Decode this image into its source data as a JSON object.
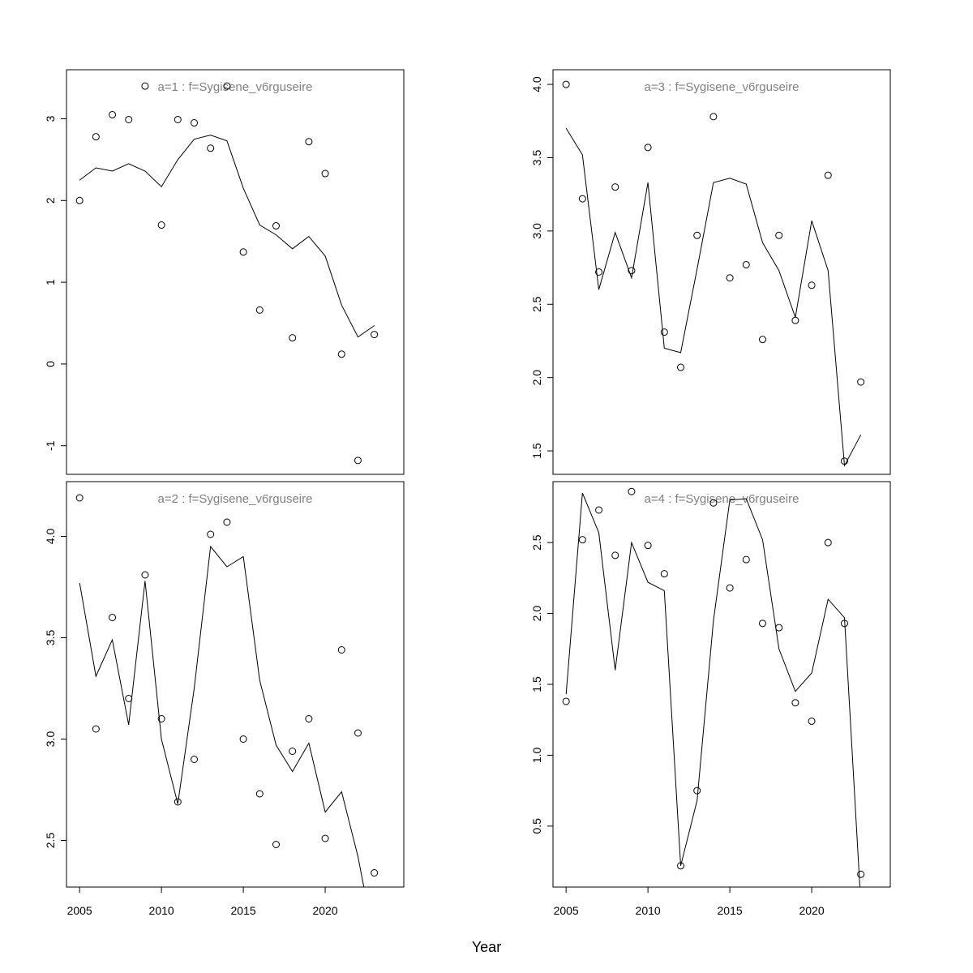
{
  "chart_data": {
    "type": "line",
    "xlabel": "Year",
    "xlim": [
      2004.2,
      2024.8
    ],
    "xticks": [
      2005,
      2010,
      2015,
      2020
    ],
    "x": [
      2005,
      2006,
      2007,
      2008,
      2009,
      2010,
      2011,
      2012,
      2013,
      2014,
      2015,
      2016,
      2017,
      2018,
      2019,
      2020,
      2021,
      2022,
      2023
    ],
    "line_color": "#000000",
    "title_color": "#808080",
    "panels": [
      {
        "id": "a1",
        "title": "a=1  :  f=Sygisene_v6rguseire",
        "ylim": [
          -1.35,
          3.6
        ],
        "yticks": [
          -1,
          0,
          1,
          2,
          3
        ],
        "ytick_labels": [
          "-1",
          "0",
          "1",
          "2",
          "3"
        ],
        "series": [
          {
            "kind": "points",
            "values": [
              2.0,
              2.78,
              3.05,
              2.99,
              3.4,
              1.7,
              2.99,
              2.95,
              2.64,
              3.4,
              1.37,
              0.66,
              1.69,
              0.32,
              2.72,
              2.33,
              0.12,
              -1.18,
              0.36
            ]
          },
          {
            "kind": "line",
            "values": [
              2.25,
              2.4,
              2.36,
              2.45,
              2.36,
              2.17,
              2.5,
              2.75,
              2.8,
              2.73,
              2.15,
              1.7,
              1.58,
              1.41,
              1.56,
              1.32,
              0.72,
              0.33,
              0.47
            ]
          }
        ]
      },
      {
        "id": "a3",
        "title": "a=3  :  f=Sygisene_v6rguseire",
        "ylim": [
          1.34,
          4.1
        ],
        "yticks": [
          1.5,
          2.0,
          2.5,
          3.0,
          3.5,
          4.0
        ],
        "ytick_labels": [
          "1.5",
          "2.0",
          "2.5",
          "3.0",
          "3.5",
          "4.0"
        ],
        "series": [
          {
            "kind": "points",
            "values": [
              4.0,
              3.22,
              2.72,
              3.3,
              2.73,
              3.57,
              2.31,
              2.07,
              2.97,
              3.78,
              2.68,
              2.77,
              2.26,
              2.97,
              2.39,
              2.63,
              3.38,
              1.43,
              1.97
            ]
          },
          {
            "kind": "line",
            "values": [
              3.7,
              3.52,
              2.6,
              2.99,
              2.68,
              3.33,
              2.2,
              2.17,
              2.74,
              3.33,
              3.36,
              3.32,
              2.92,
              2.73,
              2.41,
              3.07,
              2.73,
              1.4,
              1.61
            ]
          }
        ]
      },
      {
        "id": "a2",
        "title": "a=2  :  f=Sygisene_v6rguseire",
        "ylim": [
          2.27,
          4.27
        ],
        "yticks": [
          2.5,
          3.0,
          3.5,
          4.0
        ],
        "ytick_labels": [
          "2.5",
          "3.0",
          "3.5",
          "4.0"
        ],
        "series": [
          {
            "kind": "points",
            "values": [
              4.19,
              3.05,
              3.6,
              3.2,
              3.81,
              3.1,
              2.69,
              2.9,
              4.01,
              4.07,
              3.0,
              2.73,
              2.48,
              2.94,
              3.1,
              2.51,
              3.44,
              3.03,
              2.34
            ]
          },
          {
            "kind": "line",
            "values": [
              3.77,
              3.31,
              3.49,
              3.07,
              3.78,
              3.0,
              2.68,
              3.25,
              3.95,
              3.85,
              3.9,
              3.29,
              2.97,
              2.84,
              2.98,
              2.64,
              2.74,
              2.42,
              2.0
            ]
          }
        ]
      },
      {
        "id": "a4",
        "title": "a=4  :  f=Sygisene_v6rguseire",
        "ylim": [
          0.07,
          2.93
        ],
        "yticks": [
          0.5,
          1.0,
          1.5,
          2.0,
          2.5
        ],
        "ytick_labels": [
          "0.5",
          "1.0",
          "1.5",
          "2.0",
          "2.5"
        ],
        "series": [
          {
            "kind": "points",
            "values": [
              1.38,
              2.52,
              2.73,
              2.41,
              2.86,
              2.48,
              2.28,
              0.22,
              0.75,
              2.78,
              2.18,
              2.38,
              1.93,
              1.9,
              1.37,
              1.24,
              2.5,
              1.93,
              0.16
            ]
          },
          {
            "kind": "line",
            "values": [
              1.43,
              2.85,
              2.57,
              1.6,
              2.5,
              2.22,
              2.16,
              0.22,
              0.68,
              1.95,
              2.8,
              2.81,
              2.52,
              1.75,
              1.45,
              1.58,
              2.1,
              1.97,
              -0.05
            ]
          }
        ]
      }
    ]
  }
}
